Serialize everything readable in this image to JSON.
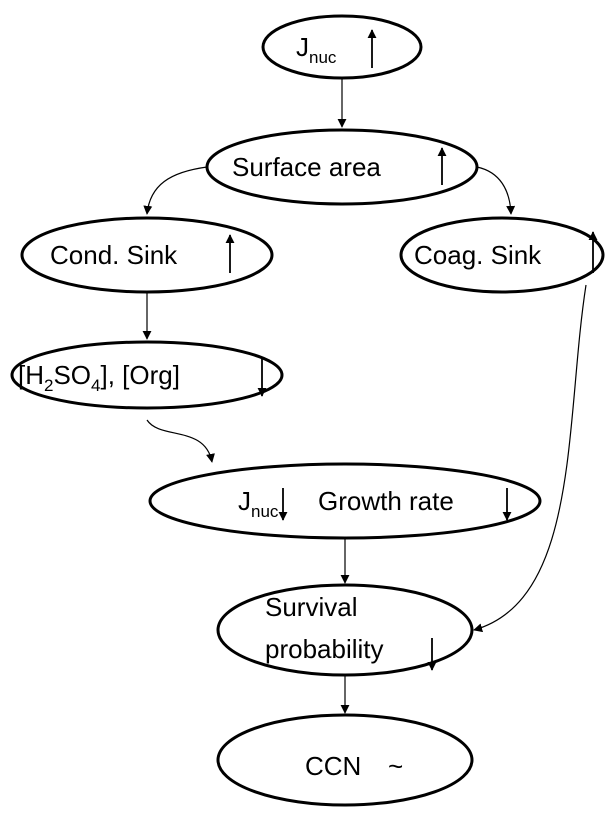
{
  "nodes": [
    {
      "label": [
        {
          "text": "J"
        },
        {
          "sub": "nuc"
        }
      ]
    },
    {
      "label": [
        {
          "text": "Surface area"
        }
      ]
    },
    {
      "label": [
        {
          "text": "Cond. Sink"
        }
      ]
    },
    {
      "label": [
        {
          "text": "Coag. Sink"
        }
      ]
    },
    {
      "label": [
        {
          "text": "[H"
        },
        {
          "sub": "2"
        },
        {
          "text": "SO"
        },
        {
          "sub": "4"
        },
        {
          "text": "], [Org]"
        }
      ]
    },
    {
      "label": [
        {
          "text": "J"
        },
        {
          "sub": "nuc"
        }
      ],
      "label2": [
        {
          "text": "Growth rate"
        }
      ]
    },
    {
      "label": [
        {
          "text": "Survival"
        }
      ],
      "label2": [
        {
          "text": "probability"
        }
      ]
    },
    {
      "label": [
        {
          "text": "CCN"
        }
      ],
      "label2": [
        {
          "text": "~"
        }
      ]
    }
  ]
}
